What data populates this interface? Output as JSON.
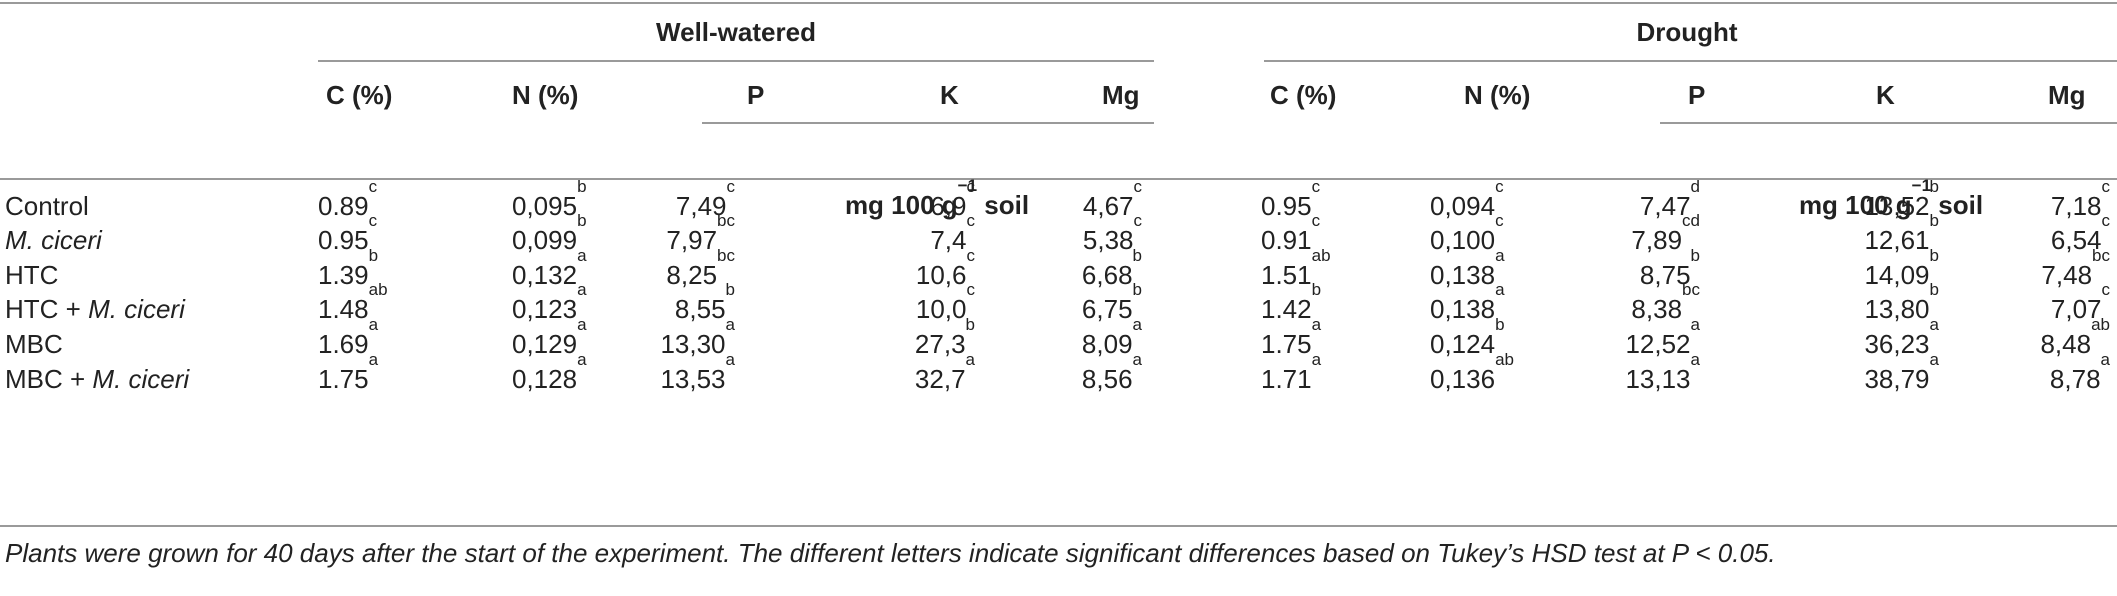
{
  "header": {
    "group_left": "Well-watered",
    "group_right": "Drought",
    "columns": [
      "C (%)",
      "N (%)",
      "P",
      "K",
      "Mg",
      "C (%)",
      "N (%)",
      "P",
      "K",
      "Mg"
    ],
    "unit_prefix": "mg 100 g",
    "unit_sup": "−1",
    "unit_suffix": " soil"
  },
  "rows": [
    {
      "label": "Control",
      "label_parts": [
        {
          "t": "Control",
          "i": false
        }
      ],
      "cells": [
        [
          "0.89",
          "c"
        ],
        [
          "0,095",
          "b"
        ],
        [
          "7,49",
          "c"
        ],
        [
          "6,9",
          "c"
        ],
        [
          "4,67",
          "c"
        ],
        [
          "0.95",
          "c"
        ],
        [
          "0,094",
          "c"
        ],
        [
          "7,47",
          "d"
        ],
        [
          "13,52",
          "b"
        ],
        [
          "7,18",
          "c"
        ]
      ]
    },
    {
      "label": "M. ciceri",
      "label_parts": [
        {
          "t": "M. ciceri",
          "i": true
        }
      ],
      "cells": [
        [
          "0.95",
          "c"
        ],
        [
          "0,099",
          "b"
        ],
        [
          "7,97",
          "bc"
        ],
        [
          "7,4",
          "c"
        ],
        [
          "5,38",
          "c"
        ],
        [
          "0.91",
          "c"
        ],
        [
          "0,100",
          "c"
        ],
        [
          "7,89",
          "cd"
        ],
        [
          "12,61",
          "b"
        ],
        [
          "6,54",
          "c"
        ]
      ]
    },
    {
      "label": "HTC",
      "label_parts": [
        {
          "t": "HTC",
          "i": false
        }
      ],
      "cells": [
        [
          "1.39",
          "b"
        ],
        [
          "0,132",
          "a"
        ],
        [
          "8,25",
          "bc"
        ],
        [
          "10,6",
          "c"
        ],
        [
          "6,68",
          "b"
        ],
        [
          "1.51",
          "ab"
        ],
        [
          "0,138",
          "a"
        ],
        [
          "8,75",
          "b"
        ],
        [
          "14,09",
          "b"
        ],
        [
          "7,48",
          "bc"
        ]
      ]
    },
    {
      "label": "HTC + M. ciceri",
      "label_parts": [
        {
          "t": "HTC + ",
          "i": false
        },
        {
          "t": "M. ciceri",
          "i": true
        }
      ],
      "cells": [
        [
          "1.48",
          "ab"
        ],
        [
          "0,123",
          "a"
        ],
        [
          "8,55",
          "b"
        ],
        [
          "10,0",
          "c"
        ],
        [
          "6,75",
          "b"
        ],
        [
          "1.42",
          "b"
        ],
        [
          "0,138",
          "a"
        ],
        [
          "8,38",
          "bc"
        ],
        [
          "13,80",
          "b"
        ],
        [
          "7,07",
          "c"
        ]
      ]
    },
    {
      "label": "MBC",
      "label_parts": [
        {
          "t": "MBC",
          "i": false
        }
      ],
      "cells": [
        [
          "1.69",
          "a"
        ],
        [
          "0,129",
          "a"
        ],
        [
          "13,30",
          "a"
        ],
        [
          "27,3",
          "b"
        ],
        [
          "8,09",
          "a"
        ],
        [
          "1.75",
          "a"
        ],
        [
          "0,124",
          "b"
        ],
        [
          "12,52",
          "a"
        ],
        [
          "36,23",
          "a"
        ],
        [
          "8,48",
          "ab"
        ]
      ]
    },
    {
      "label": "MBC + M. ciceri",
      "label_parts": [
        {
          "t": "MBC + ",
          "i": false
        },
        {
          "t": "M. ciceri",
          "i": true
        }
      ],
      "cells": [
        [
          "1.75",
          "a"
        ],
        [
          "0,128",
          "a"
        ],
        [
          "13,53",
          "a"
        ],
        [
          "32,7",
          "a"
        ],
        [
          "8,56",
          "a"
        ],
        [
          "1.71",
          "a"
        ],
        [
          "0,136",
          "ab"
        ],
        [
          "13,13",
          "a"
        ],
        [
          "38,79",
          "a"
        ],
        [
          "8,78",
          "a"
        ]
      ]
    }
  ],
  "footnote": "Plants were grown for 40 days after the start of the experiment. The different letters indicate significant differences based on Tukey’s HSD test at P < 0.05."
}
